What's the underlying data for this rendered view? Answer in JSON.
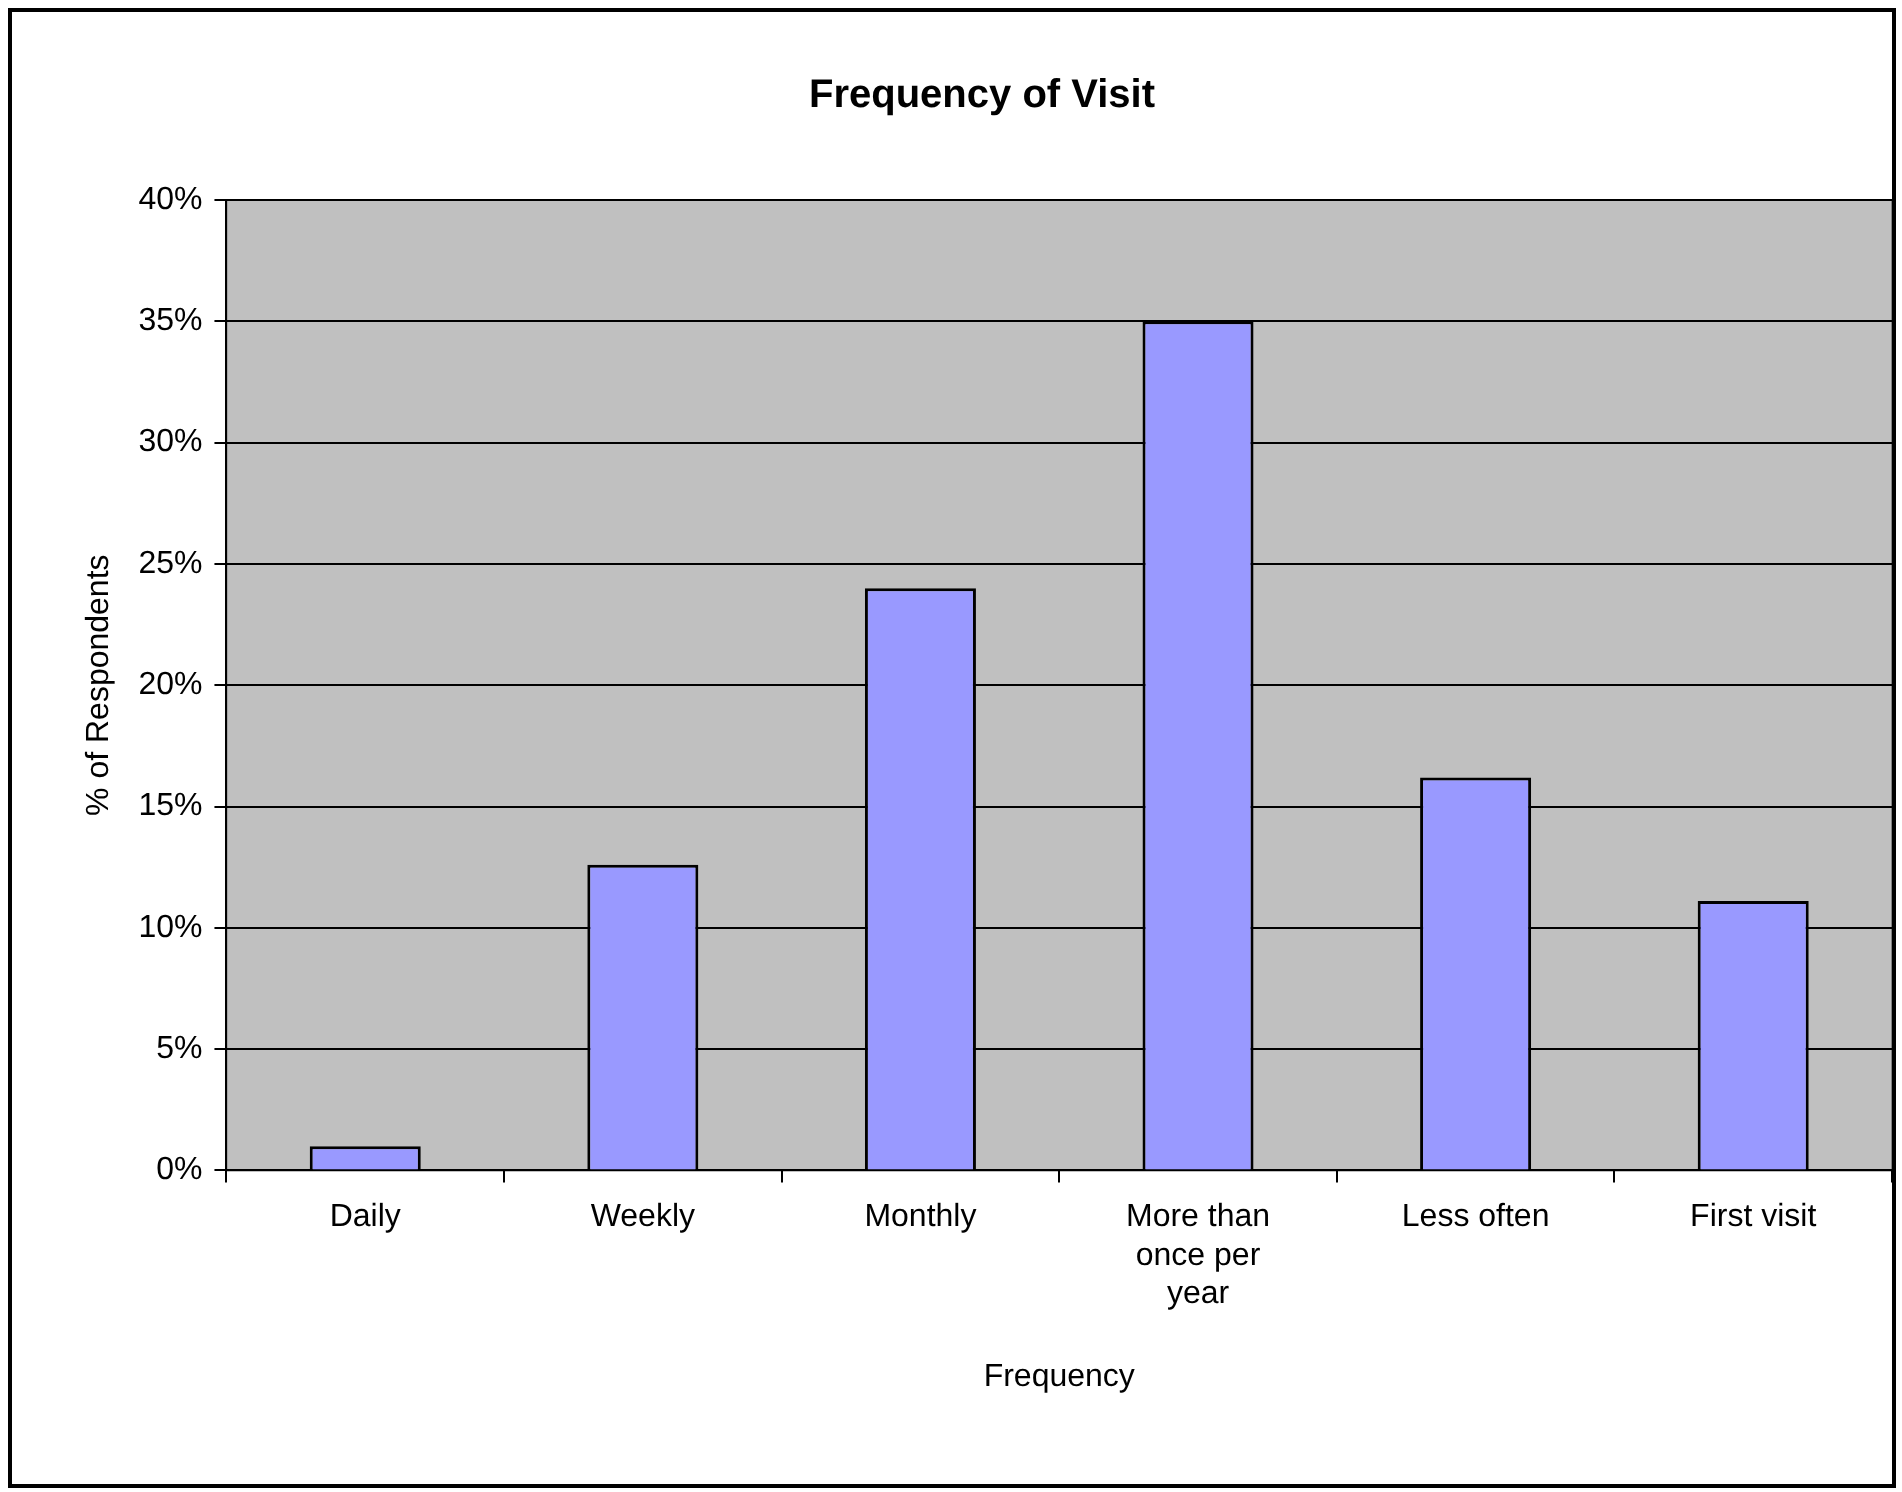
{
  "chart_data": {
    "type": "bar",
    "title": "Frequency of Visit",
    "xlabel": "Frequency",
    "ylabel": "% of Respondents",
    "categories": [
      "Daily",
      "Weekly",
      "Monthly",
      "More than once per year",
      "Less often",
      "First visit"
    ],
    "values": [
      1,
      12.6,
      24,
      35,
      16.2,
      11.1
    ],
    "color": "#9999ff",
    "ylim": [
      0,
      40
    ],
    "yticks": [
      {
        "value": 0,
        "label": "0%"
      },
      {
        "value": 5,
        "label": "5%"
      },
      {
        "value": 10,
        "label": "10%"
      },
      {
        "value": 15,
        "label": "15%"
      },
      {
        "value": 20,
        "label": "20%"
      },
      {
        "value": 25,
        "label": "25%"
      },
      {
        "value": 30,
        "label": "30%"
      },
      {
        "value": 35,
        "label": "35%"
      },
      {
        "value": 40,
        "label": "40%"
      }
    ],
    "grid": "y",
    "legend": false
  }
}
